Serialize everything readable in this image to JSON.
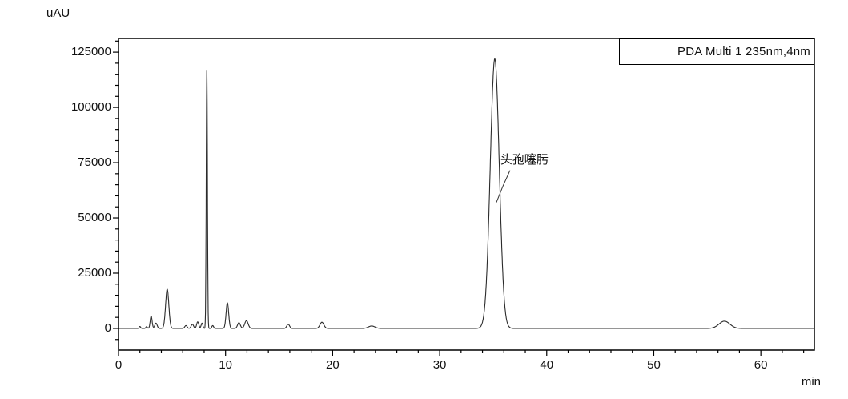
{
  "page": {
    "background": "#ffffff"
  },
  "colors": {
    "trace": "#2b2b2b",
    "frame": "#000000",
    "leader": "#333333",
    "text": "#111111"
  },
  "chart_data": {
    "type": "line",
    "title": "",
    "xlabel": "min",
    "ylabel": "uAU",
    "xlim": [
      0,
      65
    ],
    "ylim": [
      -9800,
      131200
    ],
    "grid": false,
    "legend_position": "top-right-inside",
    "x_major_ticks": [
      0,
      10,
      20,
      30,
      40,
      50,
      60
    ],
    "x_tick_labels": [
      "0",
      "10",
      "20",
      "30",
      "40",
      "50",
      "60"
    ],
    "x_minor_tick_step_min": 2,
    "y_major_ticks": [
      0,
      25000,
      50000,
      75000,
      100000,
      125000
    ],
    "y_tick_labels": [
      "0",
      "25000",
      "50000",
      "75000",
      "100000",
      "125000"
    ],
    "y_minor_tick_step_uau": 5000,
    "series": [
      {
        "name": "PDA Multi 1 235nm,4nm",
        "baseline_uau": 0,
        "peaks": [
          {
            "time_min": 2.0,
            "height_uau": 900,
            "sigma_min": 0.07
          },
          {
            "time_min": 2.62,
            "height_uau": 800,
            "sigma_min": 0.07
          },
          {
            "time_min": 3.05,
            "height_uau": 5600,
            "sigma_min": 0.09
          },
          {
            "time_min": 3.5,
            "height_uau": 2400,
            "sigma_min": 0.11
          },
          {
            "time_min": 4.55,
            "height_uau": 17800,
            "sigma_min": 0.15
          },
          {
            "time_min": 6.3,
            "height_uau": 1300,
            "sigma_min": 0.11
          },
          {
            "time_min": 6.9,
            "height_uau": 1900,
            "sigma_min": 0.11
          },
          {
            "time_min": 7.4,
            "height_uau": 3000,
            "sigma_min": 0.1
          },
          {
            "time_min": 7.8,
            "height_uau": 2400,
            "sigma_min": 0.08
          },
          {
            "time_min": 8.25,
            "height_uau": 118800,
            "sigma_min": 0.055
          },
          {
            "time_min": 8.8,
            "height_uau": 1300,
            "sigma_min": 0.08
          },
          {
            "time_min": 10.17,
            "height_uau": 11600,
            "sigma_min": 0.12
          },
          {
            "time_min": 11.25,
            "height_uau": 2600,
            "sigma_min": 0.13
          },
          {
            "time_min": 11.95,
            "height_uau": 3500,
            "sigma_min": 0.16
          },
          {
            "time_min": 15.85,
            "height_uau": 1900,
            "sigma_min": 0.13
          },
          {
            "time_min": 19.0,
            "height_uau": 2800,
            "sigma_min": 0.18
          },
          {
            "time_min": 23.65,
            "height_uau": 1100,
            "sigma_min": 0.3
          },
          {
            "time_min": 35.15,
            "height_uau": 122000,
            "sigma_min": 0.42
          },
          {
            "time_min": 56.6,
            "height_uau": 3300,
            "sigma_min": 0.5
          }
        ]
      }
    ],
    "annotations": [
      {
        "text": "头孢噻肟",
        "time_min": 35.15,
        "value_uau": 57000
      }
    ]
  }
}
